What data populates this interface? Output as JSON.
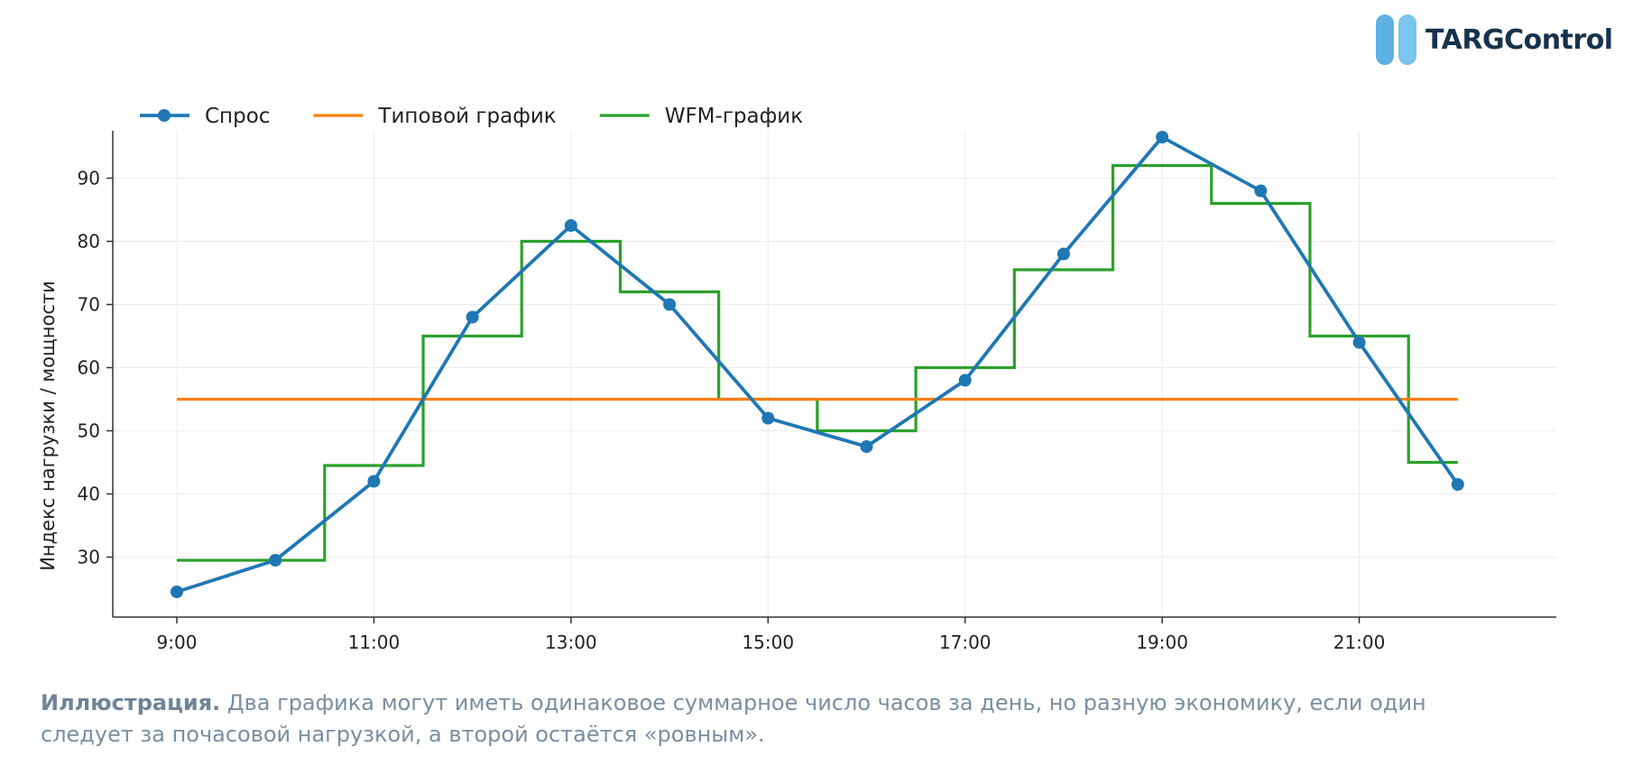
{
  "logo": {
    "text": "TARGControl"
  },
  "chart_data": {
    "type": "line",
    "title": "",
    "xlabel": "",
    "ylabel": "Индекс нагрузки / мощности",
    "x": [
      9,
      10,
      11,
      12,
      13,
      14,
      15,
      16,
      17,
      18,
      19,
      20,
      21,
      22
    ],
    "x_tick_values": [
      9,
      11,
      13,
      15,
      17,
      19,
      21
    ],
    "x_tick_labels": [
      "9:00",
      "11:00",
      "13:00",
      "15:00",
      "17:00",
      "19:00",
      "21:00"
    ],
    "y_ticks": [
      30,
      40,
      50,
      60,
      70,
      80,
      90
    ],
    "xlim": [
      8.35,
      23.0
    ],
    "ylim": [
      20.5,
      97.5
    ],
    "grid": true,
    "legend_position": "top-left",
    "series": [
      {
        "name": "Спрос",
        "style": "line-markers",
        "color": "#1f77b4",
        "values": [
          24.5,
          29.5,
          42,
          68,
          82.5,
          70,
          52,
          47.5,
          58,
          78,
          96.5,
          88,
          64,
          41.5
        ]
      },
      {
        "name": "Типовой график",
        "style": "line",
        "color": "#ff7f0e",
        "values": [
          55,
          55,
          55,
          55,
          55,
          55,
          55,
          55,
          55,
          55,
          55,
          55,
          55,
          55
        ]
      },
      {
        "name": "WFM-график",
        "style": "step-mid",
        "color": "#2ca02c",
        "values": [
          29.5,
          29.5,
          44.5,
          65,
          80,
          72,
          55,
          50,
          60,
          75.5,
          92,
          86,
          65,
          45
        ]
      }
    ]
  },
  "caption": {
    "bold": "Иллюстрация.",
    "text": " Два графика могут иметь одинаковое суммарное число часов за день, но разную экономику, если один следует за почасовой нагрузкой, а второй остаётся «ровным»."
  }
}
